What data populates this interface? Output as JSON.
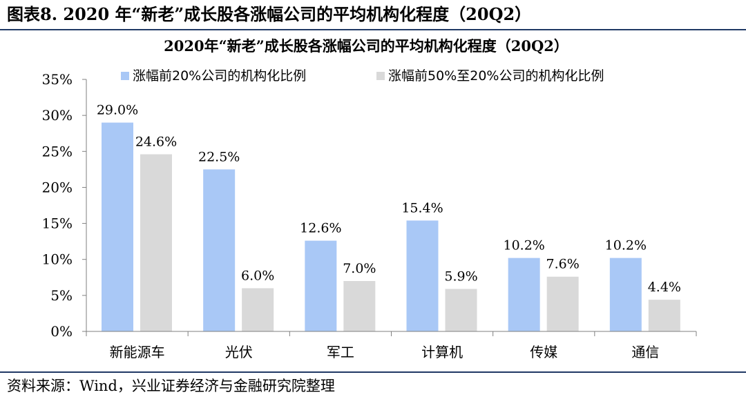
{
  "figure": {
    "caption": "图表8. 2020 年“新老”成长股各涨幅公司的平均机构化程度（20Q2）",
    "source": "资料来源：Wind，兴业证券经济与金融研究院整理"
  },
  "colors": {
    "series_1": "#a9c8f6",
    "series_2": "#d9d9d9",
    "axis": "#7f7f7f",
    "rule": "#1f3864"
  },
  "chart_data": {
    "type": "bar",
    "title": "2020年“新老”成长股各涨幅公司的平均机构化程度（20Q2）",
    "xlabel": "",
    "ylabel": "",
    "categories": [
      "新能源车",
      "光伏",
      "军工",
      "计算机",
      "传媒",
      "通信"
    ],
    "series": [
      {
        "name": "涨幅前20%公司的机构化比例",
        "values": [
          29.0,
          22.5,
          12.6,
          15.4,
          10.2,
          10.2
        ],
        "labels": [
          "29.0%",
          "22.5%",
          "12.6%",
          "15.4%",
          "10.2%",
          "10.2%"
        ]
      },
      {
        "name": "涨幅前50%至20%公司的机构化比例",
        "values": [
          24.6,
          6.0,
          7.0,
          5.9,
          7.6,
          4.4
        ],
        "labels": [
          "24.6%",
          "6.0%",
          "7.0%",
          "5.9%",
          "7.6%",
          "4.4%"
        ]
      }
    ],
    "ylim": [
      0,
      35
    ],
    "yticks": [
      0,
      5,
      10,
      15,
      20,
      25,
      30,
      35
    ],
    "ytick_labels": [
      "0%",
      "5%",
      "10%",
      "15%",
      "20%",
      "25%",
      "30%",
      "35%"
    ],
    "grid": false,
    "legend": "top"
  }
}
